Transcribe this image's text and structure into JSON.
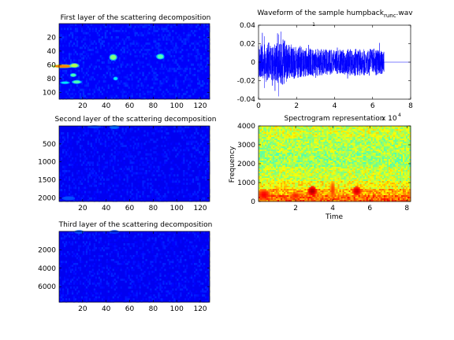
{
  "figure": {
    "background": "#ffffff",
    "axis_color": "#000000"
  },
  "chart_data": [
    {
      "type": "heatmap",
      "title": "First layer of the scattering decomposition",
      "colormap": "jet",
      "xlim": [
        0,
        128
      ],
      "ylim": [
        0,
        110
      ],
      "y_reversed": true,
      "xticks": [
        20,
        40,
        60,
        80,
        100,
        120
      ],
      "yticks": [
        20,
        40,
        60,
        80,
        100
      ],
      "background_level": 0.12,
      "hotspots": [
        {
          "x": 3,
          "y": 62,
          "rx": 7,
          "ry": 2,
          "level": 0.75
        },
        {
          "x": 13,
          "y": 61,
          "rx": 3,
          "ry": 2.5,
          "level": 0.55
        },
        {
          "x": 12,
          "y": 75,
          "rx": 2,
          "ry": 2,
          "level": 0.45
        },
        {
          "x": 15,
          "y": 85,
          "rx": 3,
          "ry": 2,
          "level": 0.45
        },
        {
          "x": 5,
          "y": 86,
          "rx": 3,
          "ry": 1.5,
          "level": 0.35
        },
        {
          "x": 46,
          "y": 49,
          "rx": 2.5,
          "ry": 3.5,
          "level": 0.5
        },
        {
          "x": 48,
          "y": 80,
          "rx": 1.5,
          "ry": 2,
          "level": 0.35
        },
        {
          "x": 86,
          "y": 48,
          "rx": 2.5,
          "ry": 3,
          "level": 0.45
        }
      ]
    },
    {
      "type": "line",
      "title": "Waveform of the sample humpback",
      "title_subscript": "runc",
      "title_suffix": ".wav",
      "title_sub_mark": "1",
      "xlim": [
        0,
        8
      ],
      "ylim": [
        -0.04,
        0.04
      ],
      "xticks": [
        "0",
        "2",
        "4",
        "6",
        "8"
      ],
      "xtick_values": [
        0,
        2,
        4,
        6,
        8
      ],
      "yticks": [
        "-0.04",
        "-0.02",
        "0",
        "0.02",
        "0.04"
      ],
      "ytick_values": [
        -0.04,
        -0.02,
        0,
        0.02,
        0.04
      ],
      "series_color": "#0000ff",
      "signal_end": 6.6,
      "envelope_x": [
        0,
        0.4,
        0.8,
        1.2,
        1.6,
        2.0,
        2.5,
        3.0,
        3.5,
        4.0,
        4.5,
        5.0,
        5.5,
        6.0,
        6.6
      ],
      "envelope_y": [
        0.018,
        0.022,
        0.02,
        0.026,
        0.02,
        0.017,
        0.016,
        0.015,
        0.014,
        0.013,
        0.014,
        0.015,
        0.014,
        0.015,
        0.013
      ],
      "peak_min": -0.037,
      "peak_max": 0.033
    },
    {
      "type": "heatmap",
      "title": "Second layer of the scattering decomposition",
      "colormap": "jet",
      "xlim": [
        0,
        128
      ],
      "ylim": [
        0,
        2100
      ],
      "y_reversed": true,
      "xticks": [
        20,
        40,
        60,
        80,
        100,
        120
      ],
      "yticks": [
        500,
        1000,
        1500,
        2000
      ],
      "background_level": 0.11,
      "hotspots": [
        {
          "x": 47,
          "y": 35,
          "rx": 3,
          "ry": 40,
          "level": 0.22
        },
        {
          "x": 30,
          "y": 25,
          "rx": 4,
          "ry": 30,
          "level": 0.18
        },
        {
          "x": 8,
          "y": 2010,
          "rx": 4,
          "ry": 40,
          "level": 0.2
        }
      ]
    },
    {
      "type": "heatmap",
      "title": "Spectrogram representation",
      "xlabel": "Time",
      "ylabel": "Frequency",
      "colormap": "jet",
      "xlim": [
        0,
        82000
      ],
      "ylim": [
        0,
        4000
      ],
      "y_reversed": false,
      "xticks": [
        "2",
        "4",
        "6",
        "8"
      ],
      "xtick_values": [
        20000,
        40000,
        60000,
        80000
      ],
      "x_multiplier": "x 10",
      "x_multiplier_exp": "4",
      "yticks": [
        "0",
        "1000",
        "2000",
        "3000",
        "4000"
      ],
      "ytick_values": [
        0,
        1000,
        2000,
        3000,
        4000
      ],
      "band_levels": [
        {
          "from": 0,
          "to": 300,
          "level": 0.78
        },
        {
          "from": 300,
          "to": 700,
          "level": 0.7
        },
        {
          "from": 700,
          "to": 1100,
          "level": 0.62
        },
        {
          "from": 1100,
          "to": 1800,
          "level": 0.57
        },
        {
          "from": 1800,
          "to": 2600,
          "level": 0.53
        },
        {
          "from": 2600,
          "to": 3400,
          "level": 0.55
        },
        {
          "from": 3400,
          "to": 4000,
          "level": 0.58
        }
      ],
      "hotspots": [
        {
          "x": 29000,
          "y": 550,
          "rx": 2500,
          "ry": 250,
          "level": 0.95
        },
        {
          "x": 53000,
          "y": 550,
          "rx": 2500,
          "ry": 250,
          "level": 0.92
        },
        {
          "x": 3000,
          "y": 350,
          "rx": 3500,
          "ry": 300,
          "level": 0.88
        },
        {
          "x": 20000,
          "y": 300,
          "rx": 3000,
          "ry": 200,
          "level": 0.85
        },
        {
          "x": 40000,
          "y": 600,
          "rx": 1500,
          "ry": 500,
          "level": 0.82
        }
      ]
    },
    {
      "type": "heatmap",
      "title": "Third layer of the scattering decomposition",
      "colormap": "jet",
      "xlim": [
        0,
        128
      ],
      "ylim": [
        0,
        7700
      ],
      "y_reversed": true,
      "xticks": [
        20,
        40,
        60,
        80,
        100,
        120
      ],
      "yticks": [
        2000,
        4000,
        6000
      ],
      "background_level": 0.11,
      "hotspots": [
        {
          "x": 17,
          "y": 60,
          "rx": 3,
          "ry": 150,
          "level": 0.2
        },
        {
          "x": 47,
          "y": 60,
          "rx": 3,
          "ry": 150,
          "level": 0.17
        }
      ]
    }
  ]
}
